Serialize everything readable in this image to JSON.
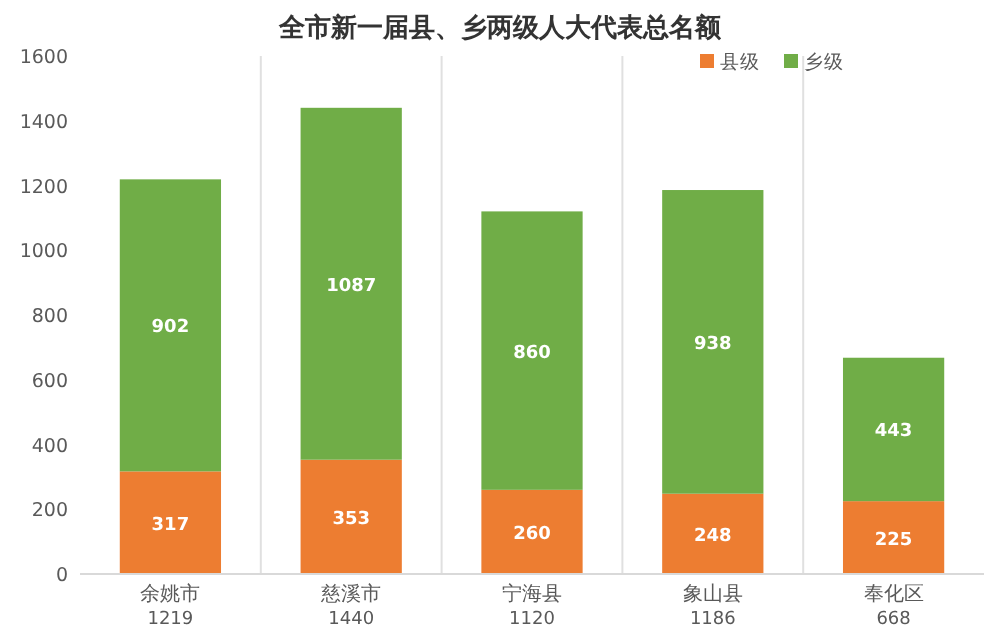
{
  "chart_data": {
    "type": "bar",
    "stacked": true,
    "title": "全市新一届县、乡两级人大代表总名额",
    "categories": [
      "余姚市",
      "慈溪市",
      "宁海县",
      "象山县",
      "奉化区"
    ],
    "series": [
      {
        "name": "县级",
        "color": "#ed7d31",
        "values": [
          317,
          353,
          260,
          248,
          225
        ]
      },
      {
        "name": "乡级",
        "color": "#70ad47",
        "values": [
          902,
          1087,
          860,
          938,
          443
        ]
      }
    ],
    "totals": [
      "1219",
      "1440",
      "1120",
      "1186",
      "668"
    ],
    "ylim": [
      0,
      1600
    ],
    "yticks": [
      0,
      200,
      400,
      600,
      800,
      1000,
      1200,
      1400,
      1600
    ],
    "data_labels": true,
    "grid": "x",
    "legend": "top right"
  }
}
